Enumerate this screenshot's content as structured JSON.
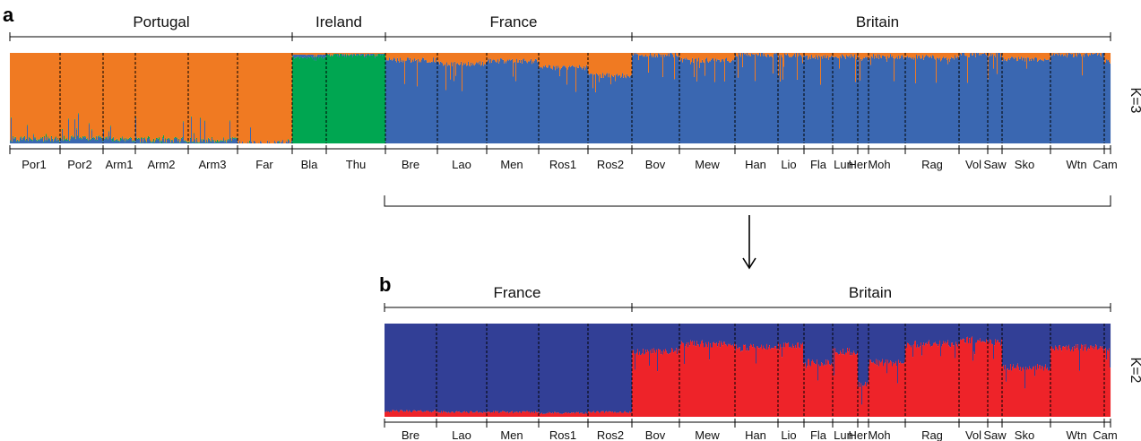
{
  "chart_data": [
    {
      "panel": "a",
      "type": "bar",
      "stacked": true,
      "k_label": "K=3",
      "groups": [
        {
          "name": "Portugal",
          "populations": [
            "Por1",
            "Por2",
            "Arm1",
            "Arm2",
            "Arm3",
            "Far"
          ]
        },
        {
          "name": "Ireland",
          "populations": [
            "Bla",
            "Thu"
          ]
        },
        {
          "name": "France",
          "populations": [
            "Bre",
            "Lao",
            "Men",
            "Ros1",
            "Ros2"
          ]
        },
        {
          "name": "Britain",
          "populations": [
            "Bov",
            "Mew",
            "Han",
            "Lio",
            "Fla",
            "Lun",
            "Her",
            "Moh",
            "Rag",
            "Vol",
            "Saw",
            "Sko",
            "Wtn",
            "Cam"
          ]
        }
      ],
      "populations": [
        {
          "name": "Por1",
          "label": "Por1",
          "dominant": "orange",
          "mean": [
            0.04,
            0.95,
            0.01
          ]
        },
        {
          "name": "Por2",
          "label": "Por2",
          "dominant": "orange",
          "mean": [
            0.05,
            0.94,
            0.01
          ]
        },
        {
          "name": "Arm1",
          "label": "Arm1",
          "dominant": "orange",
          "mean": [
            0.04,
            0.95,
            0.01
          ]
        },
        {
          "name": "Arm2",
          "label": "Arm2",
          "dominant": "orange",
          "mean": [
            0.03,
            0.96,
            0.01
          ]
        },
        {
          "name": "Arm3",
          "label": "Arm3",
          "dominant": "orange",
          "mean": [
            0.03,
            0.96,
            0.01
          ]
        },
        {
          "name": "Far",
          "label": "Far",
          "dominant": "orange",
          "mean": [
            0.01,
            0.99,
            0.0
          ]
        },
        {
          "name": "Bla",
          "label": "Bla",
          "dominant": "green",
          "mean": [
            0.03,
            0.02,
            0.95
          ]
        },
        {
          "name": "Thu",
          "label": "Thu",
          "dominant": "green",
          "mean": [
            0.01,
            0.01,
            0.98
          ]
        },
        {
          "name": "Bre",
          "label": "Bre",
          "dominant": "blue",
          "mean": [
            0.92,
            0.08,
            0.0
          ]
        },
        {
          "name": "Lao",
          "label": "Lao",
          "dominant": "blue",
          "mean": [
            0.88,
            0.12,
            0.0
          ]
        },
        {
          "name": "Men",
          "label": "Men",
          "dominant": "blue",
          "mean": [
            0.91,
            0.09,
            0.0
          ]
        },
        {
          "name": "Ros1",
          "label": "Ros1",
          "dominant": "blue",
          "mean": [
            0.84,
            0.16,
            0.0
          ]
        },
        {
          "name": "Ros2",
          "label": "Ros2",
          "dominant": "blue",
          "mean": [
            0.75,
            0.25,
            0.0
          ]
        },
        {
          "name": "Bov",
          "label": "Bov",
          "dominant": "blue",
          "mean": [
            0.98,
            0.02,
            0.0
          ]
        },
        {
          "name": "Mew",
          "label": "Mew",
          "dominant": "blue",
          "mean": [
            0.92,
            0.08,
            0.0
          ]
        },
        {
          "name": "Han",
          "label": "Han",
          "dominant": "blue",
          "mean": [
            0.98,
            0.02,
            0.0
          ]
        },
        {
          "name": "Lio",
          "label": "Lio",
          "dominant": "blue",
          "mean": [
            0.98,
            0.02,
            0.0
          ]
        },
        {
          "name": "Fla",
          "label": "Fla",
          "dominant": "blue",
          "mean": [
            0.95,
            0.05,
            0.0
          ]
        },
        {
          "name": "Lun",
          "label": "Lun",
          "dominant": "blue",
          "mean": [
            0.96,
            0.04,
            0.0
          ]
        },
        {
          "name": "Her",
          "label": "Her",
          "dominant": "blue",
          "mean": [
            0.93,
            0.07,
            0.0
          ]
        },
        {
          "name": "Moh",
          "label": "Moh",
          "dominant": "blue",
          "mean": [
            0.96,
            0.04,
            0.0
          ]
        },
        {
          "name": "Rag",
          "label": "Rag",
          "dominant": "blue",
          "mean": [
            0.95,
            0.05,
            0.0
          ]
        },
        {
          "name": "Vol",
          "label": "Vol",
          "dominant": "blue",
          "mean": [
            0.98,
            0.02,
            0.0
          ]
        },
        {
          "name": "Saw",
          "label": "Saw",
          "dominant": "blue",
          "mean": [
            0.98,
            0.02,
            0.0
          ]
        },
        {
          "name": "Sko",
          "label": "Sko",
          "dominant": "blue",
          "mean": [
            0.93,
            0.07,
            0.0
          ]
        },
        {
          "name": "Wtn",
          "label": "Wtn",
          "dominant": "blue",
          "mean": [
            0.98,
            0.02,
            0.0
          ]
        },
        {
          "name": "Cam",
          "label": "Cam",
          "dominant": "blue",
          "mean": [
            0.9,
            0.1,
            0.0
          ]
        }
      ],
      "series": [
        {
          "color": "#3a67b1"
        },
        {
          "color": "#f07a22"
        },
        {
          "color": "#00a651"
        }
      ],
      "ylim": [
        0,
        1
      ]
    },
    {
      "panel": "b",
      "type": "bar",
      "stacked": true,
      "k_label": "K=2",
      "groups": [
        {
          "name": "France",
          "populations": [
            "Bre",
            "Lao",
            "Men",
            "Ros1",
            "Ros2"
          ]
        },
        {
          "name": "Britain",
          "populations": [
            "Bov",
            "Mew",
            "Han",
            "Lio",
            "Fla",
            "Lun",
            "Her",
            "Moh",
            "Rag",
            "Vol",
            "Saw",
            "Sko",
            "Wtn",
            "Cam"
          ]
        }
      ],
      "populations": [
        {
          "name": "Bre",
          "label": "Bre",
          "mean": [
            0.06,
            0.94
          ]
        },
        {
          "name": "Lao",
          "label": "Lao",
          "mean": [
            0.05,
            0.95
          ]
        },
        {
          "name": "Men",
          "label": "Men",
          "mean": [
            0.05,
            0.95
          ]
        },
        {
          "name": "Ros1",
          "label": "Ros1",
          "mean": [
            0.04,
            0.96
          ]
        },
        {
          "name": "Ros2",
          "label": "Ros2",
          "mean": [
            0.05,
            0.95
          ]
        },
        {
          "name": "Bov",
          "label": "Bov",
          "mean": [
            0.7,
            0.3
          ]
        },
        {
          "name": "Mew",
          "label": "Mew",
          "mean": [
            0.78,
            0.22
          ]
        },
        {
          "name": "Han",
          "label": "Han",
          "mean": [
            0.74,
            0.26
          ]
        },
        {
          "name": "Lio",
          "label": "Lio",
          "mean": [
            0.76,
            0.24
          ]
        },
        {
          "name": "Fla",
          "label": "Fla",
          "mean": [
            0.58,
            0.42
          ]
        },
        {
          "name": "Lun",
          "label": "Lun",
          "mean": [
            0.7,
            0.3
          ]
        },
        {
          "name": "Her",
          "label": "Her",
          "mean": [
            0.35,
            0.65
          ]
        },
        {
          "name": "Moh",
          "label": "Moh",
          "mean": [
            0.58,
            0.42
          ]
        },
        {
          "name": "Rag",
          "label": "Rag",
          "mean": [
            0.78,
            0.22
          ]
        },
        {
          "name": "Vol",
          "label": "Vol",
          "mean": [
            0.82,
            0.18
          ]
        },
        {
          "name": "Saw",
          "label": "Saw",
          "mean": [
            0.8,
            0.2
          ]
        },
        {
          "name": "Sko",
          "label": "Sko",
          "mean": [
            0.53,
            0.47
          ]
        },
        {
          "name": "Wtn",
          "label": "Wtn",
          "mean": [
            0.74,
            0.26
          ]
        },
        {
          "name": "Cam",
          "label": "Cam",
          "mean": [
            0.72,
            0.28
          ]
        }
      ],
      "series": [
        {
          "color": "#ee2329"
        },
        {
          "color": "#323f96"
        }
      ],
      "ylim": [
        0,
        1
      ]
    }
  ]
}
